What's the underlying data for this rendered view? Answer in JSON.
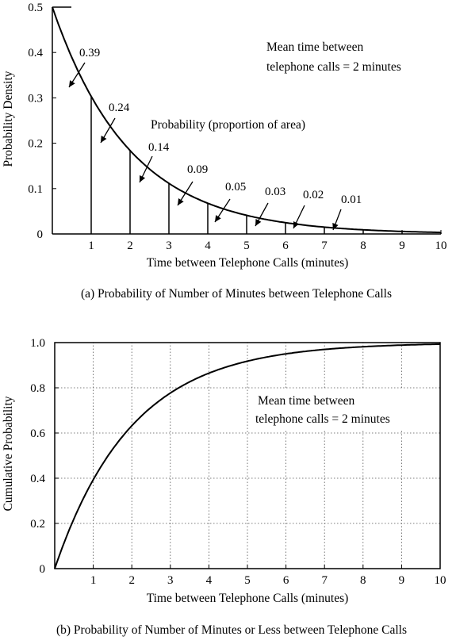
{
  "chart_data": [
    {
      "type": "area",
      "caption": "(a) Probability of Number of Minutes between Telephone Calls",
      "xlabel": "Time between Telephone Calls (minutes)",
      "ylabel": "Probability Density",
      "xlim": [
        0,
        10
      ],
      "ylim": [
        0,
        0.5
      ],
      "x_ticks": [
        "1",
        "2",
        "3",
        "4",
        "5",
        "6",
        "7",
        "8",
        "9",
        "10"
      ],
      "y_ticks": [
        "0",
        "0.1",
        "0.2",
        "0.3",
        "0.4",
        "0.5"
      ],
      "grid": false,
      "curve": {
        "function": "0.5*exp(-0.5*x)",
        "mean": 2
      },
      "interval_boundaries": [
        1,
        2,
        3,
        4,
        5,
        6,
        7,
        8,
        9,
        10
      ],
      "interval_probabilities": [
        {
          "label": "0.39",
          "interval": [
            0,
            1
          ]
        },
        {
          "label": "0.24",
          "interval": [
            1,
            2
          ]
        },
        {
          "label": "0.14",
          "interval": [
            2,
            3
          ]
        },
        {
          "label": "0.09",
          "interval": [
            3,
            4
          ]
        },
        {
          "label": "0.05",
          "interval": [
            4,
            5
          ]
        },
        {
          "label": "0.03",
          "interval": [
            5,
            6
          ]
        },
        {
          "label": "0.02",
          "interval": [
            6,
            7
          ]
        },
        {
          "label": "0.01",
          "interval": [
            7,
            8
          ]
        }
      ],
      "annotations": {
        "mean_line1": "Mean time between",
        "mean_line2": "telephone calls = 2 minutes",
        "area_note": "Probability (proportion of area)"
      }
    },
    {
      "type": "line",
      "caption": "(b) Probability of Number of Minutes or Less between Telephone Calls",
      "xlabel": "Time between Telephone Calls (minutes)",
      "ylabel": "Cumulative Probability",
      "xlim": [
        0,
        10
      ],
      "ylim": [
        0,
        1.0
      ],
      "x_ticks": [
        "1",
        "2",
        "3",
        "4",
        "5",
        "6",
        "7",
        "8",
        "9",
        "10"
      ],
      "y_ticks": [
        "0",
        "0.2",
        "0.4",
        "0.6",
        "0.8",
        "1.0"
      ],
      "grid": true,
      "curve": {
        "function": "1-exp(-0.5*x)",
        "mean": 2
      },
      "annotations": {
        "mean_line1": "Mean time between",
        "mean_line2": "telephone calls = 2 minutes"
      }
    }
  ]
}
